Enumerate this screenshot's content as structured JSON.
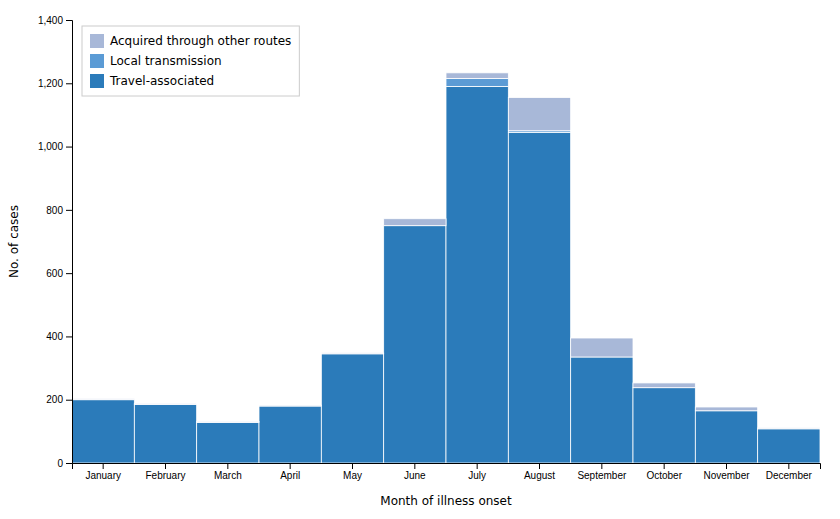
{
  "chart_data": {
    "type": "bar",
    "stacked": true,
    "xlabel": "Month of illness onset",
    "ylabel": "No. of cases",
    "categories": [
      "January",
      "February",
      "March",
      "April",
      "May",
      "June",
      "July",
      "August",
      "September",
      "October",
      "November",
      "December"
    ],
    "series": [
      {
        "name": "Travel-associated",
        "color": "#2b7bba",
        "values": [
          200,
          185,
          128,
          180,
          345,
          750,
          1190,
          1045,
          335,
          238,
          165,
          108
        ]
      },
      {
        "name": "Local transmission",
        "color": "#5b9bd5",
        "values": [
          0,
          0,
          0,
          0,
          0,
          0,
          25,
          5,
          0,
          0,
          0,
          0
        ]
      },
      {
        "name": "Acquired through other routes",
        "color": "#a8b8d8",
        "values": [
          3,
          3,
          3,
          3,
          3,
          22,
          18,
          105,
          60,
          15,
          12,
          3
        ]
      }
    ],
    "ylim": [
      0,
      1400
    ],
    "yticks": [
      0,
      200,
      400,
      600,
      800,
      {
        "value": 1000,
        "label": "1,000"
      },
      {
        "value": 1200,
        "label": "1,200"
      },
      {
        "value": 1400,
        "label": "1,400"
      }
    ],
    "grid": false,
    "legend": "upper-left"
  }
}
